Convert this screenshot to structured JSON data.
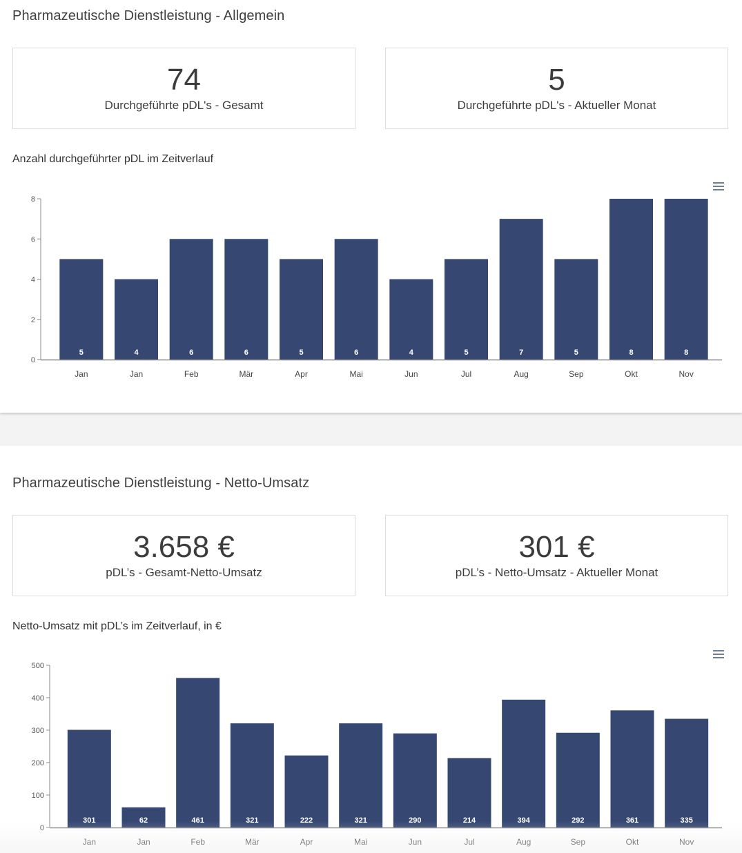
{
  "section1": {
    "title": "Pharmazeutische Dienstleistung - Allgemein",
    "kpis": [
      {
        "value": "74",
        "label": "Durchgeführte pDL's - Gesamt"
      },
      {
        "value": "5",
        "label": "Durchgeführte pDL's - Aktueller Monat"
      }
    ],
    "chart_title": "Anzahl durchgeführter pDL im Zeitverlauf"
  },
  "section2": {
    "title": "Pharmazeutische Dienstleistung - Netto-Umsatz",
    "kpis": [
      {
        "value": "3.658 €",
        "label": "pDL’s - Gesamt-Netto-Umsatz"
      },
      {
        "value": "301 €",
        "label": "pDL’s - Netto-Umsatz - Aktueller Monat"
      }
    ],
    "chart_title": "Netto-Umsatz mit pDL’s im Zeitverlauf, in €"
  },
  "menu_icon": "hamburger-menu-icon",
  "colors": {
    "bar": "#364872",
    "axis": "#8a8a8a",
    "gap_background": "#f3f3f3"
  },
  "chart_data": [
    {
      "type": "bar",
      "title": "Anzahl durchgeführter pDL im Zeitverlauf",
      "categories": [
        "Jan",
        "Jan",
        "Feb",
        "Mär",
        "Apr",
        "Mai",
        "Jun",
        "Jul",
        "Aug",
        "Sep",
        "Okt",
        "Nov"
      ],
      "values": [
        5,
        4,
        6,
        6,
        5,
        6,
        4,
        5,
        7,
        5,
        8,
        8
      ],
      "ylim": [
        0,
        8
      ],
      "yticks": [
        0,
        2,
        4,
        6,
        8
      ],
      "xlabel": "",
      "ylabel": "",
      "data_labels": true,
      "grid": false,
      "legend": "none"
    },
    {
      "type": "bar",
      "title": "Netto-Umsatz mit pDL’s im Zeitverlauf, in €",
      "categories": [
        "Jan",
        "Jan",
        "Feb",
        "Mär",
        "Apr",
        "Mai",
        "Jun",
        "Jul",
        "Aug",
        "Sep",
        "Okt",
        "Nov"
      ],
      "values": [
        301,
        62,
        461,
        321,
        222,
        321,
        290,
        214,
        394,
        292,
        361,
        335
      ],
      "ylim": [
        0,
        500
      ],
      "yticks": [
        0,
        100,
        200,
        300,
        400,
        500
      ],
      "xlabel": "",
      "ylabel": "",
      "data_labels": true,
      "grid": false,
      "legend": "none"
    }
  ]
}
